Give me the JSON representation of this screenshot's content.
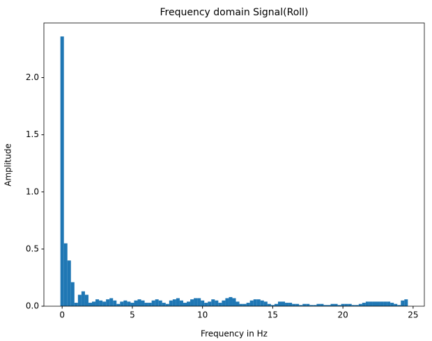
{
  "chart_data": {
    "type": "bar",
    "title": "Frequency domain Signal(Roll)",
    "x_label": "Frequency in Hz",
    "y_label": "Amplitude",
    "x": [
      0,
      0.25,
      0.5,
      0.75,
      1,
      1.25,
      1.5,
      1.75,
      2,
      2.25,
      2.5,
      2.75,
      3,
      3.25,
      3.5,
      3.75,
      4,
      4.25,
      4.5,
      4.75,
      5,
      5.25,
      5.5,
      5.75,
      6,
      6.25,
      6.5,
      6.75,
      7,
      7.25,
      7.5,
      7.75,
      8,
      8.25,
      8.5,
      8.75,
      9,
      9.25,
      9.5,
      9.75,
      10,
      10.25,
      10.5,
      10.75,
      11,
      11.25,
      11.5,
      11.75,
      12,
      12.25,
      12.5,
      12.75,
      13,
      13.25,
      13.5,
      13.75,
      14,
      14.25,
      14.5,
      14.75,
      15,
      15.25,
      15.5,
      15.75,
      16,
      16.25,
      16.5,
      16.75,
      17,
      17.25,
      17.5,
      17.75,
      18,
      18.25,
      18.5,
      18.75,
      19,
      19.25,
      19.5,
      19.75,
      20,
      20.25,
      20.5,
      20.75,
      21,
      21.25,
      21.5,
      21.75,
      22,
      22.25,
      22.5,
      22.75,
      23,
      23.25,
      23.5,
      23.75,
      24,
      24.25,
      24.5
    ],
    "values": [
      2.36,
      0.55,
      0.4,
      0.21,
      0.03,
      0.1,
      0.13,
      0.1,
      0.03,
      0.04,
      0.06,
      0.05,
      0.04,
      0.06,
      0.07,
      0.05,
      0.02,
      0.04,
      0.05,
      0.04,
      0.03,
      0.05,
      0.06,
      0.05,
      0.03,
      0.03,
      0.05,
      0.06,
      0.05,
      0.03,
      0.02,
      0.05,
      0.06,
      0.07,
      0.05,
      0.03,
      0.04,
      0.06,
      0.07,
      0.07,
      0.05,
      0.03,
      0.04,
      0.06,
      0.05,
      0.03,
      0.05,
      0.07,
      0.08,
      0.07,
      0.04,
      0.02,
      0.02,
      0.03,
      0.05,
      0.06,
      0.06,
      0.05,
      0.04,
      0.02,
      0.01,
      0.02,
      0.04,
      0.04,
      0.03,
      0.03,
      0.02,
      0.02,
      0.01,
      0.02,
      0.02,
      0.01,
      0.01,
      0.02,
      0.02,
      0.01,
      0.01,
      0.02,
      0.02,
      0.01,
      0.02,
      0.02,
      0.02,
      0.01,
      0.01,
      0.02,
      0.03,
      0.04,
      0.04,
      0.04,
      0.04,
      0.04,
      0.04,
      0.04,
      0.03,
      0.02,
      0.01,
      0.05,
      0.06
    ],
    "color": "#1f77b4",
    "xlim": [
      -1.3,
      25.8
    ],
    "ylim": [
      0,
      2.478
    ],
    "xticks": [
      0,
      5,
      10,
      15,
      20,
      25
    ],
    "yticks": [
      {
        "value": 0,
        "label": "0.0"
      },
      0.5,
      {
        "value": 1,
        "label": "1.0"
      },
      1.5,
      {
        "value": 2,
        "label": "2.0"
      }
    ],
    "grid": false
  }
}
